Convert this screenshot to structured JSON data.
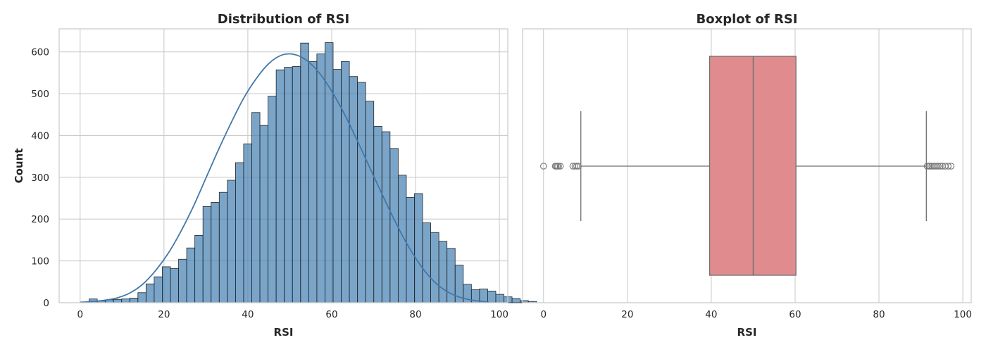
{
  "chart_data": [
    {
      "type": "bar",
      "title": "Distribution of RSI",
      "xlabel": "RSI",
      "ylabel": "Count",
      "xlim": [
        -5,
        102
      ],
      "ylim": [
        0,
        655
      ],
      "xticks": [
        0,
        20,
        40,
        60,
        80,
        100
      ],
      "yticks": [
        0,
        100,
        200,
        300,
        400,
        500,
        600
      ],
      "grid": true,
      "bin_start": 0.2,
      "bin_width": 1.94,
      "counts": [
        0,
        9,
        4,
        7,
        8,
        9,
        11,
        24,
        45,
        62,
        86,
        82,
        104,
        131,
        161,
        230,
        240,
        264,
        293,
        335,
        380,
        455,
        424,
        494,
        557,
        563,
        565,
        621,
        577,
        595,
        622,
        558,
        577,
        541,
        527,
        482,
        422,
        409,
        369,
        305,
        252,
        261,
        191,
        168,
        147,
        130,
        90,
        44,
        31,
        33,
        28,
        20,
        14,
        10,
        5,
        3
      ],
      "kde": {
        "x": [
          0,
          3,
          6,
          9,
          12,
          15,
          18,
          21,
          24,
          27,
          30,
          33,
          36,
          39,
          42,
          45,
          48,
          51,
          54,
          57,
          60,
          63,
          66,
          69,
          72,
          75,
          78,
          81,
          84,
          87,
          90,
          93,
          96,
          97.5
        ],
        "y": [
          1,
          3,
          6,
          12,
          24,
          45,
          77,
          118,
          170,
          230,
          298,
          366,
          430,
          489,
          536,
          572,
          592,
          594,
          580,
          550,
          506,
          452,
          390,
          325,
          260,
          197,
          140,
          92,
          55,
          30,
          15,
          7,
          3,
          1
        ]
      },
      "color": "#4682b4",
      "kde_color": "#4178a9"
    },
    {
      "type": "box",
      "title": "Boxplot of RSI",
      "xlabel": "RSI",
      "xlim": [
        -5,
        102
      ],
      "xticks": [
        0,
        20,
        40,
        60,
        80,
        100
      ],
      "grid": true,
      "whisker_low": 8.9,
      "q1": 39.6,
      "median": 50.0,
      "q3": 60.2,
      "whisker_high": 91.3,
      "outliers": [
        0.0,
        2.8,
        3.0,
        3.3,
        3.6,
        4.0,
        7.0,
        7.5,
        7.9,
        8.3,
        91.5,
        91.9,
        92.2,
        92.6,
        93.1,
        93.6,
        94.1,
        94.6,
        95.1,
        95.8,
        96.5,
        97.2
      ],
      "color": "#e08b8e"
    }
  ]
}
